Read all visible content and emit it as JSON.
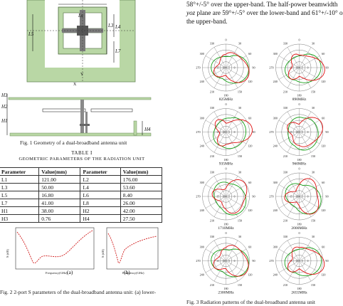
{
  "geometry_figure": {
    "labels": [
      "Ls",
      "L3",
      "L4",
      "L5",
      "L7",
      "H3",
      "H2",
      "H1",
      "H4",
      "Y",
      "X"
    ]
  },
  "fig1_caption": "Fig. 1  Geometry of a dual-broadband antenna unit",
  "table": {
    "title": "TABLE I",
    "subtitle": "GEOMETRIC PARAMETERS OF THE RADIATION UNIT",
    "headers": [
      "Parameter",
      "Value(mm)",
      "Parameter",
      "Value(mm)"
    ],
    "rows": [
      [
        "L1",
        "121.00",
        "L2",
        "176.00"
      ],
      [
        "L3",
        "50.00",
        "L4",
        "53.60"
      ],
      [
        "L5",
        "16.80",
        "L6",
        "8.40"
      ],
      [
        "L7",
        "41.00",
        "L8",
        "26.00"
      ],
      [
        "H1",
        "38.00",
        "H2",
        "42.00"
      ],
      [
        "H3",
        "0.76",
        "H4",
        "27.50"
      ]
    ]
  },
  "s_plots": {
    "ylabel": "S (dB)",
    "xlabel": "Frequency(GHz)",
    "labels": [
      "(a)",
      "(b)"
    ]
  },
  "fig2_caption": "Fig. 2  2-port S parameters of the dual-broadband antenna unit: (a) lower-",
  "intro": {
    "line1": "58°+/-5° over the upper-band. The half-power beamwidth",
    "line2_italic": "yoz",
    "line2_rest": " plane are 59°+/-5° over the lower-band and 61°+/-10° o",
    "line3": "the upper-band."
  },
  "radiation_patterns": {
    "plots": [
      {
        "freq": "825MHz"
      },
      {
        "freq": "890MHz"
      },
      {
        "freq": "935MHz"
      },
      {
        "freq": "960MHz"
      },
      {
        "freq": "1710MHz"
      },
      {
        "freq": "2000MHz"
      },
      {
        "freq": "2300MHz"
      },
      {
        "freq": "2655MHz"
      }
    ],
    "angle_labels": [
      "0",
      "90",
      "180",
      "270",
      "30",
      "60",
      "120",
      "150",
      "210",
      "240",
      "300",
      "330"
    ],
    "center_labels": [
      "-15",
      "-10",
      "-5",
      "0"
    ],
    "colors": {
      "copol": "#e01010",
      "xpol": "#18a018",
      "grid": "#555555"
    }
  },
  "fig3_caption": "Fig. 3  Radiation patterns of the dual-broadband antenna unit"
}
